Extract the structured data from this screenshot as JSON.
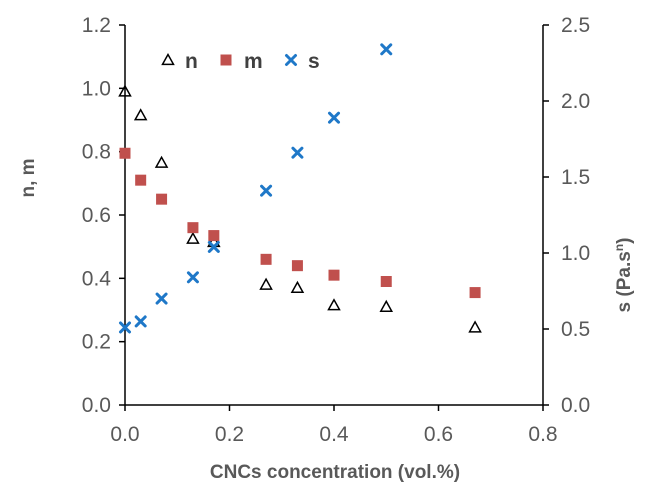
{
  "chart_data": {
    "type": "scatter",
    "title": "",
    "xlabel": "CNCs concentration (vol.%)",
    "ylabel_left": "n, m",
    "ylabel_right_base": "s (Pa.s",
    "ylabel_right_sup": "n",
    "ylabel_right_close": ")",
    "xlim": [
      0,
      0.8
    ],
    "ylim_left": [
      0,
      1.2
    ],
    "ylim_right": [
      0,
      2.5
    ],
    "x_ticks": [
      "0.0",
      "0.2",
      "0.4",
      "0.6",
      "0.8"
    ],
    "y_left_ticks": [
      "0.0",
      "0.2",
      "0.4",
      "0.6",
      "0.8",
      "1.0",
      "1.2"
    ],
    "y_right_ticks": [
      "0.0",
      "0.5",
      "1.0",
      "1.5",
      "2.0",
      "2.5"
    ],
    "grid": false,
    "legend_position": "top-center",
    "series": [
      {
        "name": "n",
        "axis": "left",
        "marker": "open-triangle",
        "color": "#000000",
        "points": [
          [
            0.0,
            0.99
          ],
          [
            0.03,
            0.915
          ],
          [
            0.07,
            0.765
          ],
          [
            0.13,
            0.525
          ],
          [
            0.17,
            0.515
          ],
          [
            0.27,
            0.38
          ],
          [
            0.33,
            0.37
          ],
          [
            0.4,
            0.315
          ],
          [
            0.5,
            0.31
          ],
          [
            0.67,
            0.245
          ]
        ]
      },
      {
        "name": "m",
        "axis": "left",
        "marker": "filled-square",
        "color": "#C0504D",
        "points": [
          [
            0.0,
            0.795
          ],
          [
            0.03,
            0.71
          ],
          [
            0.07,
            0.65
          ],
          [
            0.13,
            0.56
          ],
          [
            0.17,
            0.535
          ],
          [
            0.27,
            0.46
          ],
          [
            0.33,
            0.44
          ],
          [
            0.4,
            0.41
          ],
          [
            0.5,
            0.39
          ],
          [
            0.67,
            0.355
          ]
        ]
      },
      {
        "name": "s",
        "axis": "right",
        "marker": "cross",
        "color": "#1F78C8",
        "points": [
          [
            0.0,
            0.51
          ],
          [
            0.03,
            0.55
          ],
          [
            0.07,
            0.7
          ],
          [
            0.13,
            0.84
          ],
          [
            0.17,
            1.04
          ],
          [
            0.27,
            1.41
          ],
          [
            0.33,
            1.66
          ],
          [
            0.4,
            1.89
          ],
          [
            0.5,
            2.34
          ]
        ]
      }
    ]
  }
}
